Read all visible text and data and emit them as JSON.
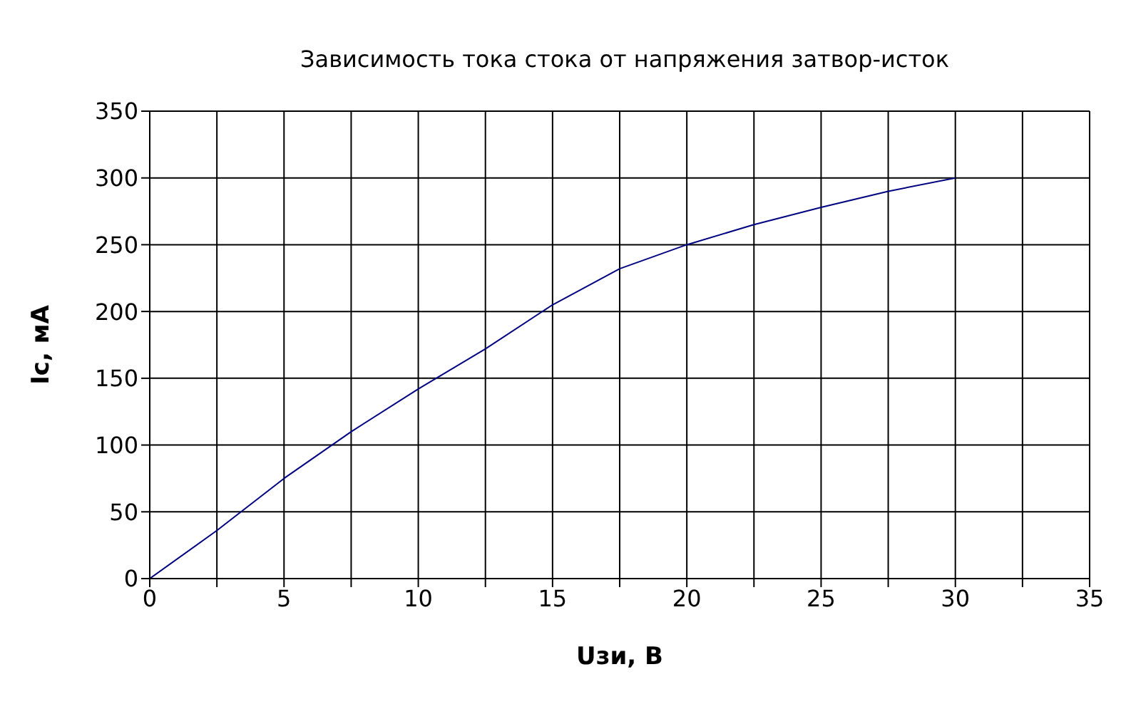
{
  "chart_data": {
    "type": "line",
    "title": "Зависимость тока стока от напряжения затвор-исток",
    "xlabel": "Uзи, В",
    "ylabel": "Ic, мА",
    "x": [
      0,
      2.5,
      5,
      7.5,
      10,
      12.5,
      15,
      17.5,
      20,
      22.5,
      25,
      27.5,
      30
    ],
    "series": [
      {
        "color": "#000080",
        "values": [
          0,
          36,
          75,
          110,
          142,
          172,
          205,
          232,
          250,
          265,
          278,
          290,
          300
        ]
      }
    ],
    "xlim": [
      0,
      35
    ],
    "xticks": [
      0,
      {
        "value": 2.5,
        "label": null
      },
      5,
      {
        "value": 7.5,
        "label": null
      },
      10,
      {
        "value": 12.5,
        "label": null
      },
      15,
      {
        "value": 17.5,
        "label": null
      },
      20,
      {
        "value": 22.5,
        "label": null
      },
      25,
      {
        "value": 27.5,
        "label": null
      },
      30,
      {
        "value": 32.5,
        "label": null
      },
      35
    ],
    "ylim": [
      0,
      350
    ],
    "yticks": [
      0,
      50,
      100,
      150,
      200,
      250,
      300,
      350
    ],
    "grid": true,
    "legend": false,
    "marker": "none",
    "line_style": "solid"
  }
}
